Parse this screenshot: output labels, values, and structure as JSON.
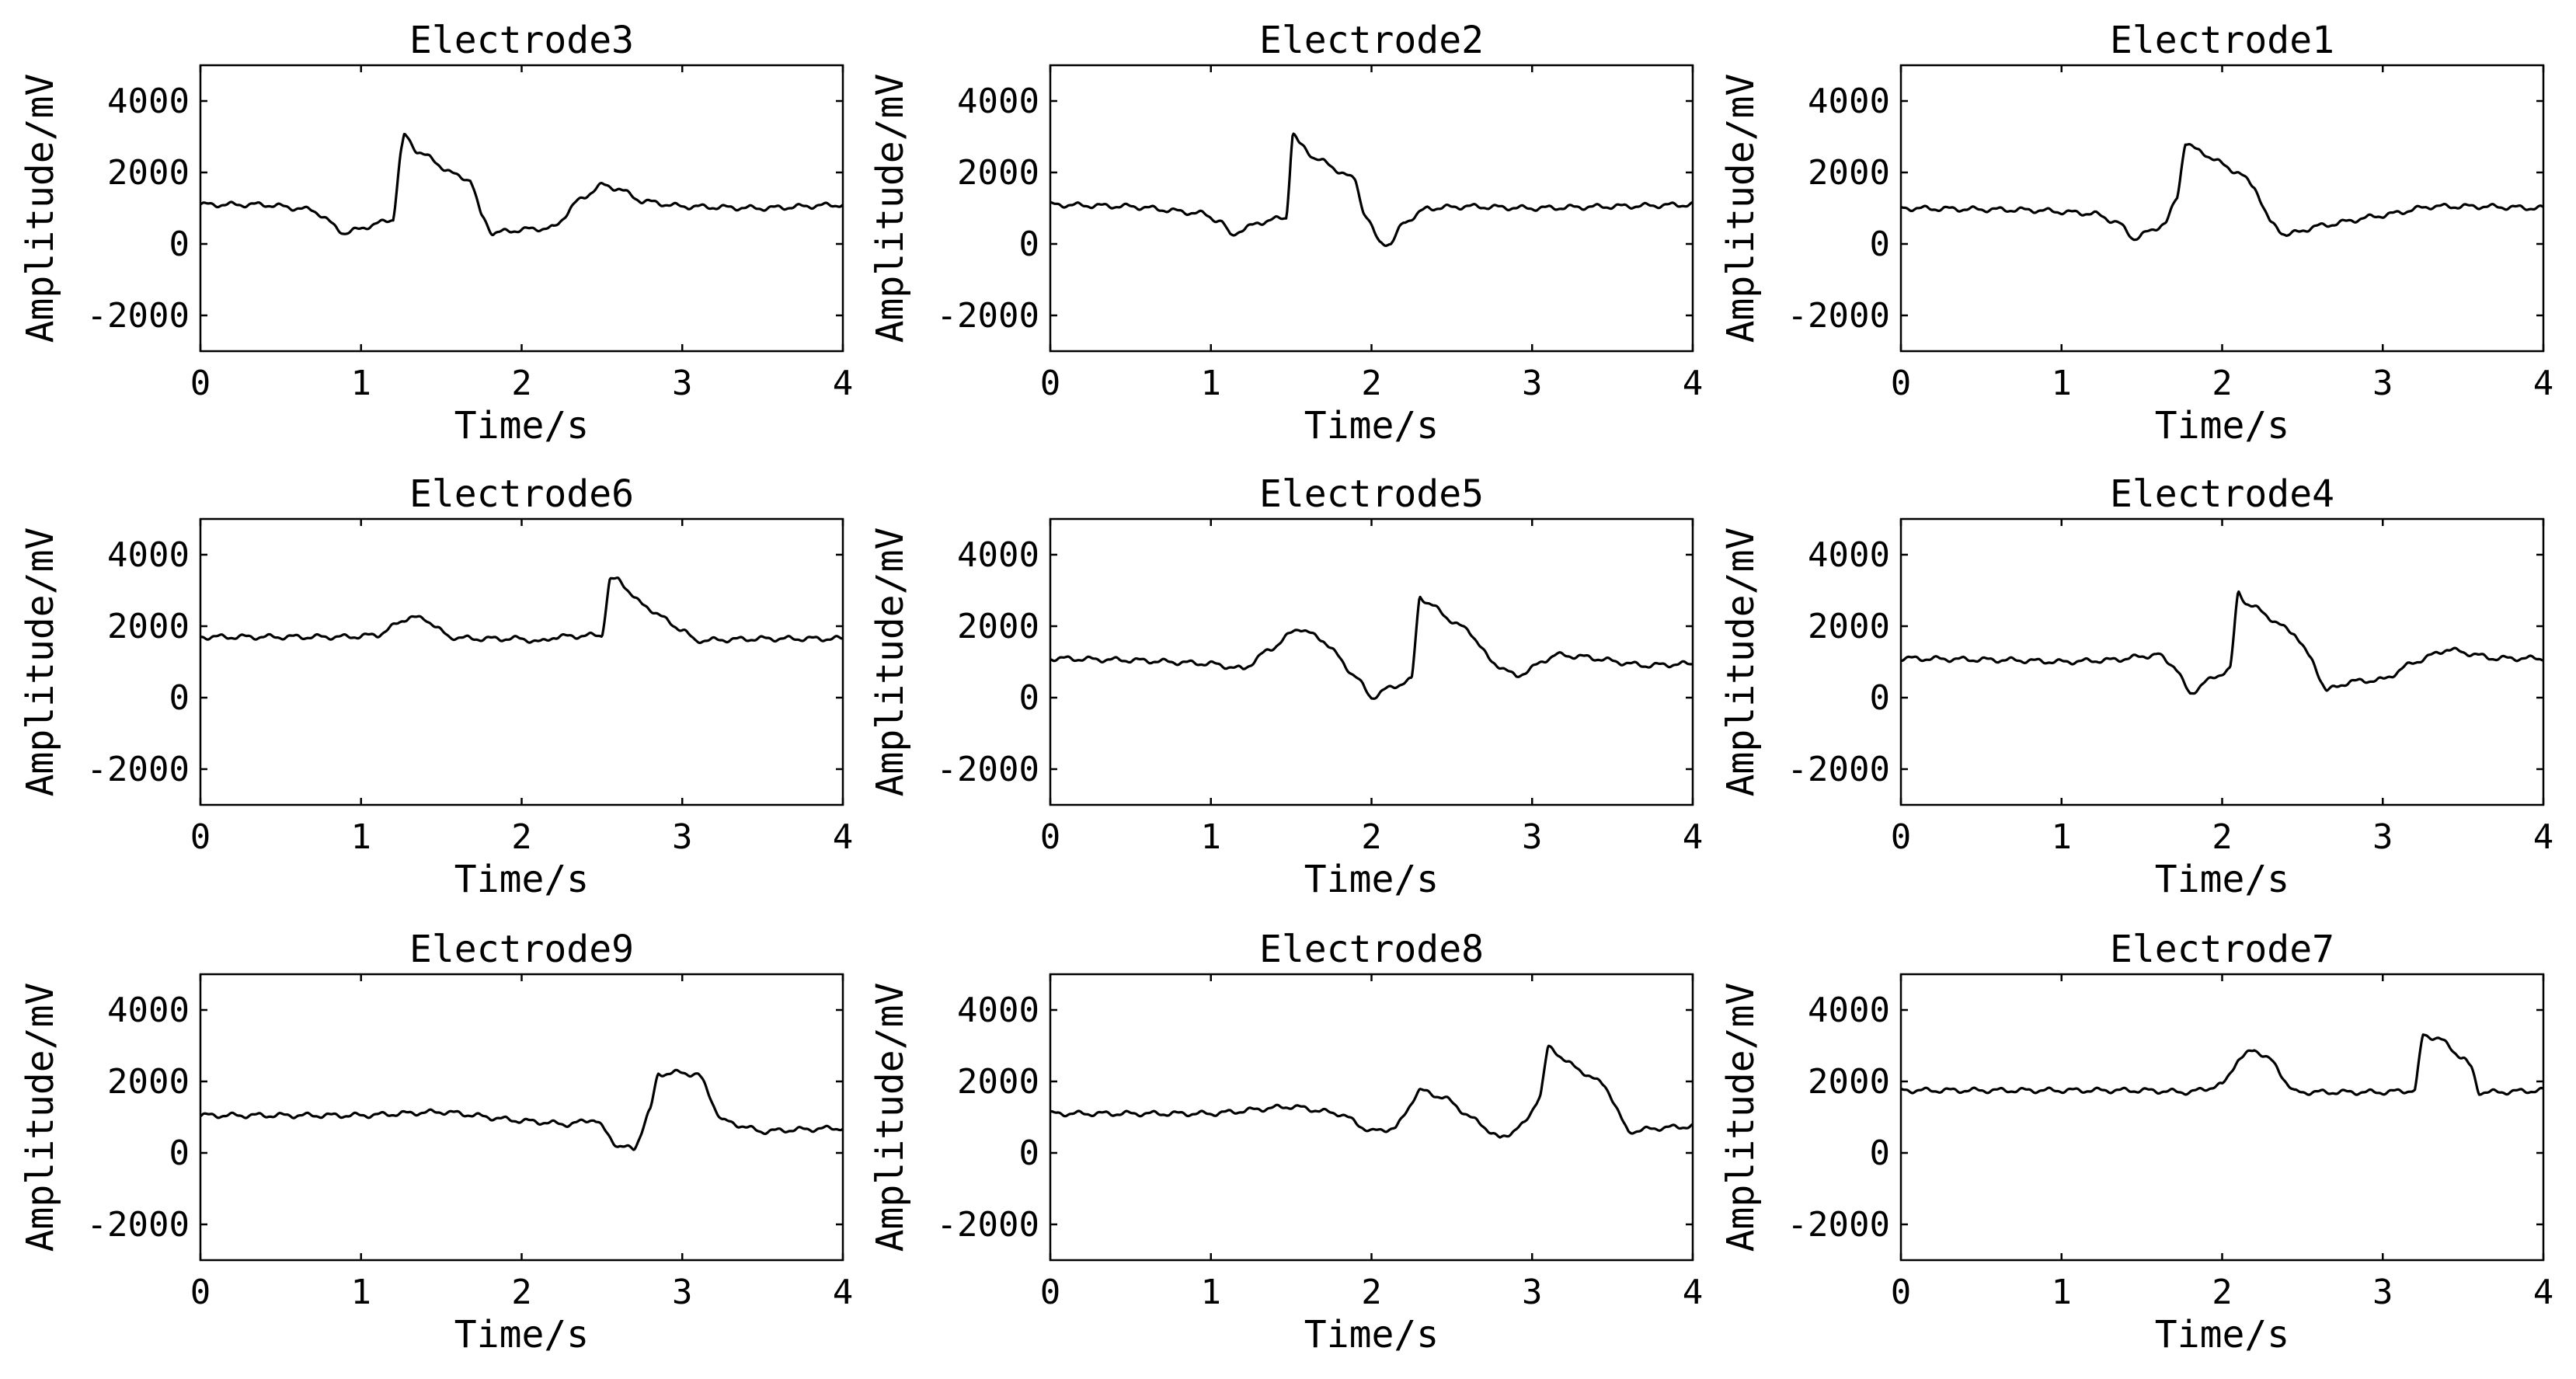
{
  "chart_data": [
    {
      "type": "line",
      "title": "Electrode3",
      "xlabel": "Time/s",
      "ylabel": "Amplitude/mV",
      "xlim": [
        0,
        4
      ],
      "ylim": [
        -3000,
        5000
      ],
      "xticks": [
        "0",
        "1",
        "2",
        "3",
        "4"
      ],
      "yticks": [
        "-2000",
        "0",
        "2000",
        "4000"
      ],
      "x": [
        0,
        0.4,
        0.7,
        0.9,
        1.05,
        1.2,
        1.25,
        1.27,
        1.35,
        1.6,
        1.68,
        1.75,
        1.82,
        1.9,
        2.0,
        2.2,
        2.35,
        2.5,
        2.6,
        2.75,
        3.0,
        3.5,
        4.0
      ],
      "y": [
        1100,
        1100,
        950,
        300,
        500,
        700,
        2600,
        3050,
        2600,
        1900,
        1800,
        800,
        300,
        350,
        400,
        450,
        1200,
        1650,
        1550,
        1200,
        1050,
        1000,
        1100
      ]
    },
    {
      "type": "line",
      "title": "Electrode2",
      "xlabel": "Time/s",
      "ylabel": "Amplitude/mV",
      "xlim": [
        0,
        4
      ],
      "ylim": [
        -3000,
        5000
      ],
      "xticks": [
        "0",
        "1",
        "2",
        "3",
        "4"
      ],
      "yticks": [
        "-2000",
        "0",
        "2000",
        "4000"
      ],
      "x": [
        0,
        0.5,
        0.95,
        1.07,
        1.12,
        1.2,
        1.3,
        1.47,
        1.51,
        1.55,
        1.65,
        1.9,
        1.95,
        2.05,
        2.12,
        2.2,
        2.35,
        2.6,
        3.0,
        3.5,
        4.0
      ],
      "y": [
        1100,
        1050,
        850,
        600,
        250,
        400,
        600,
        750,
        3100,
        2800,
        2400,
        1800,
        900,
        50,
        0,
        600,
        1000,
        1050,
        1000,
        1050,
        1100
      ]
    },
    {
      "type": "line",
      "title": "Electrode1",
      "xlabel": "Time/s",
      "ylabel": "Amplitude/mV",
      "xlim": [
        0,
        4
      ],
      "ylim": [
        -3000,
        5000
      ],
      "xticks": [
        "0",
        "1",
        "2",
        "3",
        "4"
      ],
      "yticks": [
        "-2000",
        "0",
        "2000",
        "4000"
      ],
      "x": [
        0,
        0.8,
        1.2,
        1.35,
        1.45,
        1.55,
        1.65,
        1.72,
        1.77,
        1.85,
        2.1,
        2.2,
        2.3,
        2.4,
        2.6,
        3.0,
        3.3,
        3.6,
        4.0
      ],
      "y": [
        1000,
        950,
        850,
        600,
        150,
        350,
        600,
        1300,
        2850,
        2600,
        2000,
        1600,
        600,
        250,
        500,
        800,
        1050,
        1050,
        1000
      ]
    },
    {
      "type": "line",
      "title": "Electrode6",
      "xlabel": "Time/s",
      "ylabel": "Amplitude/mV",
      "xlim": [
        0,
        4
      ],
      "ylim": [
        -3000,
        5000
      ],
      "xticks": [
        "0",
        "1",
        "2",
        "3",
        "4"
      ],
      "yticks": [
        "-2000",
        "0",
        "2000",
        "4000"
      ],
      "x": [
        0,
        0.9,
        1.1,
        1.3,
        1.4,
        1.55,
        1.7,
        2.0,
        2.12,
        2.2,
        2.5,
        2.55,
        2.6,
        2.75,
        3.0,
        3.08,
        3.5,
        4.0
      ],
      "y": [
        1700,
        1700,
        1750,
        2250,
        2200,
        1700,
        1650,
        1650,
        1550,
        1700,
        1750,
        3300,
        3300,
        2600,
        1900,
        1600,
        1650,
        1650
      ]
    },
    {
      "type": "line",
      "title": "Electrode5",
      "xlabel": "Time/s",
      "ylabel": "Amplitude/mV",
      "xlim": [
        0,
        4
      ],
      "ylim": [
        -3000,
        5000
      ],
      "xticks": [
        "0",
        "1",
        "2",
        "3",
        "4"
      ],
      "yticks": [
        "-2000",
        "0",
        "2000",
        "4000"
      ],
      "x": [
        0,
        0.5,
        1.0,
        1.2,
        1.35,
        1.55,
        1.7,
        1.9,
        2.0,
        2.1,
        2.25,
        2.3,
        2.35,
        2.55,
        2.6,
        2.75,
        2.9,
        3.15,
        3.3,
        3.7,
        4.0
      ],
      "y": [
        1100,
        1050,
        950,
        800,
        1300,
        1950,
        1600,
        600,
        0,
        250,
        500,
        2850,
        2650,
        2000,
        1900,
        1000,
        600,
        1200,
        1150,
        900,
        950
      ]
    },
    {
      "type": "line",
      "title": "Electrode4",
      "xlabel": "Time/s",
      "ylabel": "Amplitude/mV",
      "xlim": [
        0,
        4
      ],
      "ylim": [
        -3000,
        5000
      ],
      "xticks": [
        "0",
        "1",
        "2",
        "3",
        "4"
      ],
      "yticks": [
        "-2000",
        "0",
        "2000",
        "4000"
      ],
      "x": [
        0,
        0.7,
        1.0,
        1.3,
        1.6,
        1.7,
        1.8,
        1.9,
        2.05,
        2.1,
        2.15,
        2.45,
        2.55,
        2.65,
        2.8,
        3.0,
        3.2,
        3.4,
        3.7,
        4.0
      ],
      "y": [
        1100,
        1050,
        1000,
        1050,
        1200,
        900,
        100,
        450,
        800,
        2950,
        2650,
        1800,
        1100,
        200,
        450,
        500,
        1000,
        1350,
        1100,
        1100
      ]
    },
    {
      "type": "line",
      "title": "Electrode9",
      "xlabel": "Time/s",
      "ylabel": "Amplitude/mV",
      "xlim": [
        0,
        4
      ],
      "ylim": [
        -3000,
        5000
      ],
      "xticks": [
        "0",
        "1",
        "2",
        "3",
        "4"
      ],
      "yticks": [
        "-2000",
        "0",
        "2000",
        "4000"
      ],
      "x": [
        0,
        0.5,
        1.0,
        1.5,
        2.0,
        2.3,
        2.45,
        2.6,
        2.7,
        2.8,
        2.85,
        2.95,
        3.1,
        3.25,
        3.5,
        3.7,
        4.0
      ],
      "y": [
        1050,
        1050,
        1050,
        1150,
        900,
        800,
        950,
        200,
        100,
        1200,
        2200,
        2250,
        2200,
        900,
        600,
        650,
        700
      ]
    },
    {
      "type": "line",
      "title": "Electrode8",
      "xlabel": "Time/s",
      "ylabel": "Amplitude/mV",
      "xlim": [
        0,
        4
      ],
      "ylim": [
        -3000,
        5000
      ],
      "xticks": [
        "0",
        "1",
        "2",
        "3",
        "4"
      ],
      "yticks": [
        "-2000",
        "0",
        "2000",
        "4000"
      ],
      "x": [
        0,
        0.5,
        1.0,
        1.5,
        1.8,
        2.0,
        2.15,
        2.3,
        2.45,
        2.65,
        2.8,
        2.95,
        3.05,
        3.1,
        3.3,
        3.45,
        3.6,
        3.8,
        4.0
      ],
      "y": [
        1100,
        1100,
        1100,
        1300,
        1100,
        600,
        700,
        1750,
        1550,
        900,
        400,
        800,
        1600,
        2950,
        2300,
        1900,
        600,
        700,
        750
      ]
    },
    {
      "type": "line",
      "title": "Electrode7",
      "xlabel": "Time/s",
      "ylabel": "Amplitude/mV",
      "xlim": [
        0,
        4
      ],
      "ylim": [
        -3000,
        5000
      ],
      "xticks": [
        "0",
        "1",
        "2",
        "3",
        "4"
      ],
      "yticks": [
        "-2000",
        "0",
        "2000",
        "4000"
      ],
      "x": [
        0,
        1.0,
        1.5,
        1.8,
        2.0,
        2.1,
        2.2,
        2.3,
        2.45,
        3.0,
        3.2,
        3.25,
        3.35,
        3.5,
        3.55,
        3.6,
        3.7,
        4.0
      ],
      "y": [
        1750,
        1750,
        1750,
        1700,
        1900,
        2600,
        2900,
        2600,
        1700,
        1700,
        1750,
        3300,
        3200,
        2650,
        2400,
        1700,
        1700,
        1750
      ]
    }
  ]
}
